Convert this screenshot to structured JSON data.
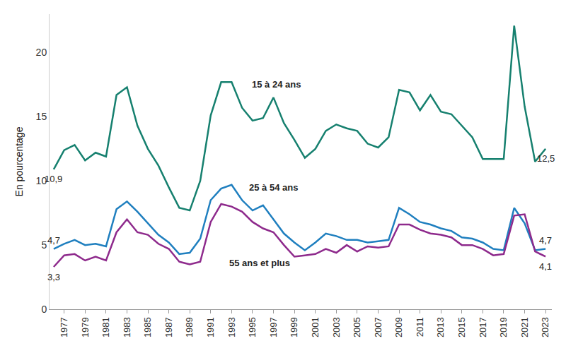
{
  "chart_data": {
    "type": "line",
    "y_label": "En pourcentage",
    "x": [
      1976,
      1977,
      1978,
      1979,
      1980,
      1981,
      1982,
      1983,
      1984,
      1985,
      1986,
      1987,
      1988,
      1989,
      1990,
      1991,
      1992,
      1993,
      1994,
      1995,
      1996,
      1997,
      1998,
      1999,
      2000,
      2001,
      2002,
      2003,
      2004,
      2005,
      2006,
      2007,
      2008,
      2009,
      2010,
      2011,
      2012,
      2013,
      2014,
      2015,
      2016,
      2017,
      2018,
      2019,
      2020,
      2021,
      2022,
      2023
    ],
    "series": [
      {
        "name": "15 à 24 ans",
        "color": "#16806f",
        "values": [
          10.9,
          12.4,
          12.8,
          11.6,
          12.2,
          11.9,
          16.7,
          17.3,
          14.3,
          12.5,
          11.2,
          9.5,
          7.9,
          7.7,
          10.0,
          15.1,
          17.7,
          17.7,
          15.7,
          14.7,
          14.9,
          16.5,
          14.5,
          13.2,
          11.8,
          12.5,
          13.9,
          14.4,
          14.1,
          13.9,
          12.9,
          12.6,
          13.4,
          17.1,
          16.9,
          15.5,
          16.7,
          15.4,
          15.2,
          14.3,
          13.4,
          11.7,
          11.7,
          11.7,
          22.1,
          15.8,
          11.5,
          12.5
        ],
        "value_labels": [
          "10,9",
          null,
          null,
          null,
          null,
          null,
          null,
          null,
          null,
          null,
          null,
          null,
          null,
          null,
          null,
          null,
          null,
          null,
          null,
          null,
          null,
          null,
          null,
          null,
          null,
          null,
          null,
          null,
          null,
          null,
          null,
          null,
          null,
          null,
          null,
          null,
          null,
          null,
          null,
          null,
          null,
          null,
          null,
          null,
          null,
          null,
          null,
          "12,5"
        ]
      },
      {
        "name": "25 à 54 ans",
        "color": "#1f7fbf",
        "values": [
          4.7,
          5.1,
          5.4,
          5.0,
          5.1,
          4.9,
          7.8,
          8.4,
          7.6,
          6.7,
          5.8,
          5.2,
          4.3,
          4.4,
          5.5,
          8.5,
          9.4,
          9.7,
          8.5,
          7.7,
          8.1,
          7.0,
          5.9,
          5.2,
          4.6,
          5.2,
          5.9,
          5.7,
          5.4,
          5.4,
          5.2,
          5.3,
          5.4,
          7.9,
          7.4,
          6.8,
          6.6,
          6.3,
          6.1,
          5.6,
          5.5,
          5.2,
          4.7,
          4.6,
          7.9,
          6.7,
          4.6,
          4.7
        ],
        "value_labels": [
          "4,7",
          null,
          null,
          null,
          null,
          null,
          null,
          null,
          null,
          null,
          null,
          null,
          null,
          null,
          null,
          null,
          null,
          null,
          null,
          null,
          null,
          null,
          null,
          null,
          null,
          null,
          null,
          null,
          null,
          null,
          null,
          null,
          null,
          null,
          null,
          null,
          null,
          null,
          null,
          null,
          null,
          null,
          null,
          null,
          null,
          null,
          null,
          "4,7"
        ]
      },
      {
        "name": "55 ans et plus",
        "color": "#8e2a8c",
        "values": [
          3.3,
          4.2,
          4.3,
          3.8,
          4.1,
          3.8,
          6.0,
          7.0,
          6.0,
          5.8,
          5.1,
          4.7,
          3.7,
          3.5,
          3.7,
          6.8,
          8.2,
          8.0,
          7.6,
          6.8,
          6.3,
          6.0,
          5.0,
          4.1,
          4.2,
          4.3,
          4.7,
          4.4,
          5.0,
          4.5,
          4.9,
          4.8,
          4.9,
          6.6,
          6.6,
          6.2,
          5.9,
          5.8,
          5.6,
          5.0,
          5.0,
          4.7,
          4.2,
          4.3,
          7.3,
          7.4,
          4.5,
          4.1
        ],
        "value_labels": [
          "3,3",
          null,
          null,
          null,
          null,
          null,
          null,
          null,
          null,
          null,
          null,
          null,
          null,
          null,
          null,
          null,
          null,
          null,
          null,
          null,
          null,
          null,
          null,
          null,
          null,
          null,
          null,
          null,
          null,
          null,
          null,
          null,
          null,
          null,
          null,
          null,
          null,
          null,
          null,
          null,
          null,
          null,
          null,
          null,
          null,
          null,
          null,
          "4,1"
        ]
      }
    ],
    "annotations": [
      {
        "text": "15 à 24 ans",
        "x": 1997.3,
        "y": 17.5
      },
      {
        "text": "25 à 54 ans",
        "x": 1997.0,
        "y": 9.5
      },
      {
        "text": "55 ans et plus",
        "x": 1995.7,
        "y": 3.6
      }
    ],
    "xlim": [
      1975.6,
      2023.6
    ],
    "xticks": [
      1977,
      1979,
      1981,
      1983,
      1985,
      1987,
      1989,
      1991,
      1993,
      1995,
      1997,
      1999,
      2001,
      2003,
      2005,
      2007,
      2009,
      2011,
      2013,
      2015,
      2017,
      2019,
      2021,
      2023
    ],
    "ylim": [
      0,
      23
    ],
    "yticks": [
      0,
      5,
      10,
      15,
      20
    ],
    "grid": false,
    "legend": "none"
  }
}
